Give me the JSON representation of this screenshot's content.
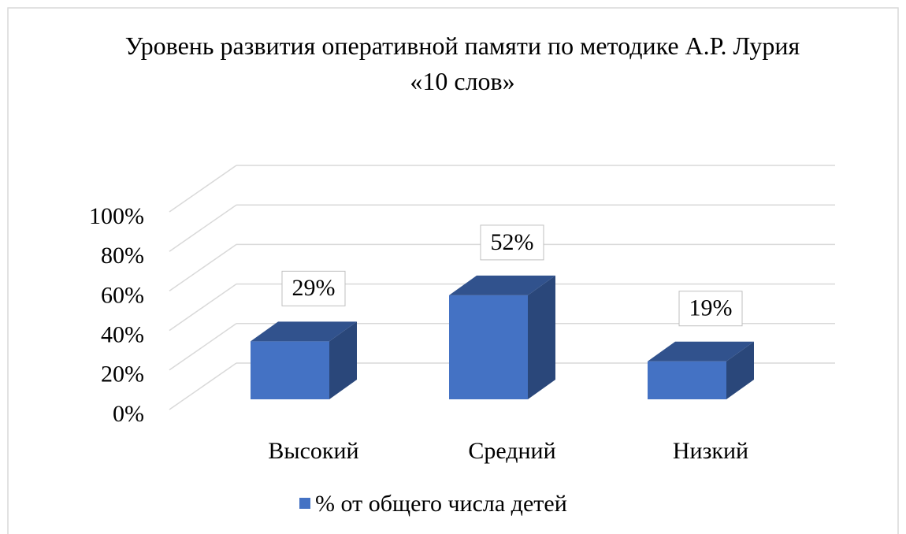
{
  "chart_data": {
    "type": "bar3d",
    "title": "Уровень развития оперативной памяти по методике А.Р. Лурия «10 слов»",
    "categories": [
      "Высокий",
      "Средний",
      "Низкий"
    ],
    "series": [
      {
        "name": "% от общего числа детей",
        "color": "#4472c4",
        "values": [
          29,
          52,
          19
        ],
        "value_labels": [
          "29%",
          "52%",
          "19%"
        ]
      }
    ],
    "ylim": [
      0,
      100
    ],
    "yticks": [
      {
        "value": 0,
        "label": "0%"
      },
      {
        "value": 20,
        "label": "20%"
      },
      {
        "value": 40,
        "label": "40%"
      },
      {
        "value": 60,
        "label": "60%"
      },
      {
        "value": 80,
        "label": "80%"
      },
      {
        "value": 100,
        "label": "100%"
      }
    ],
    "grid": true,
    "legend": "bottom"
  }
}
